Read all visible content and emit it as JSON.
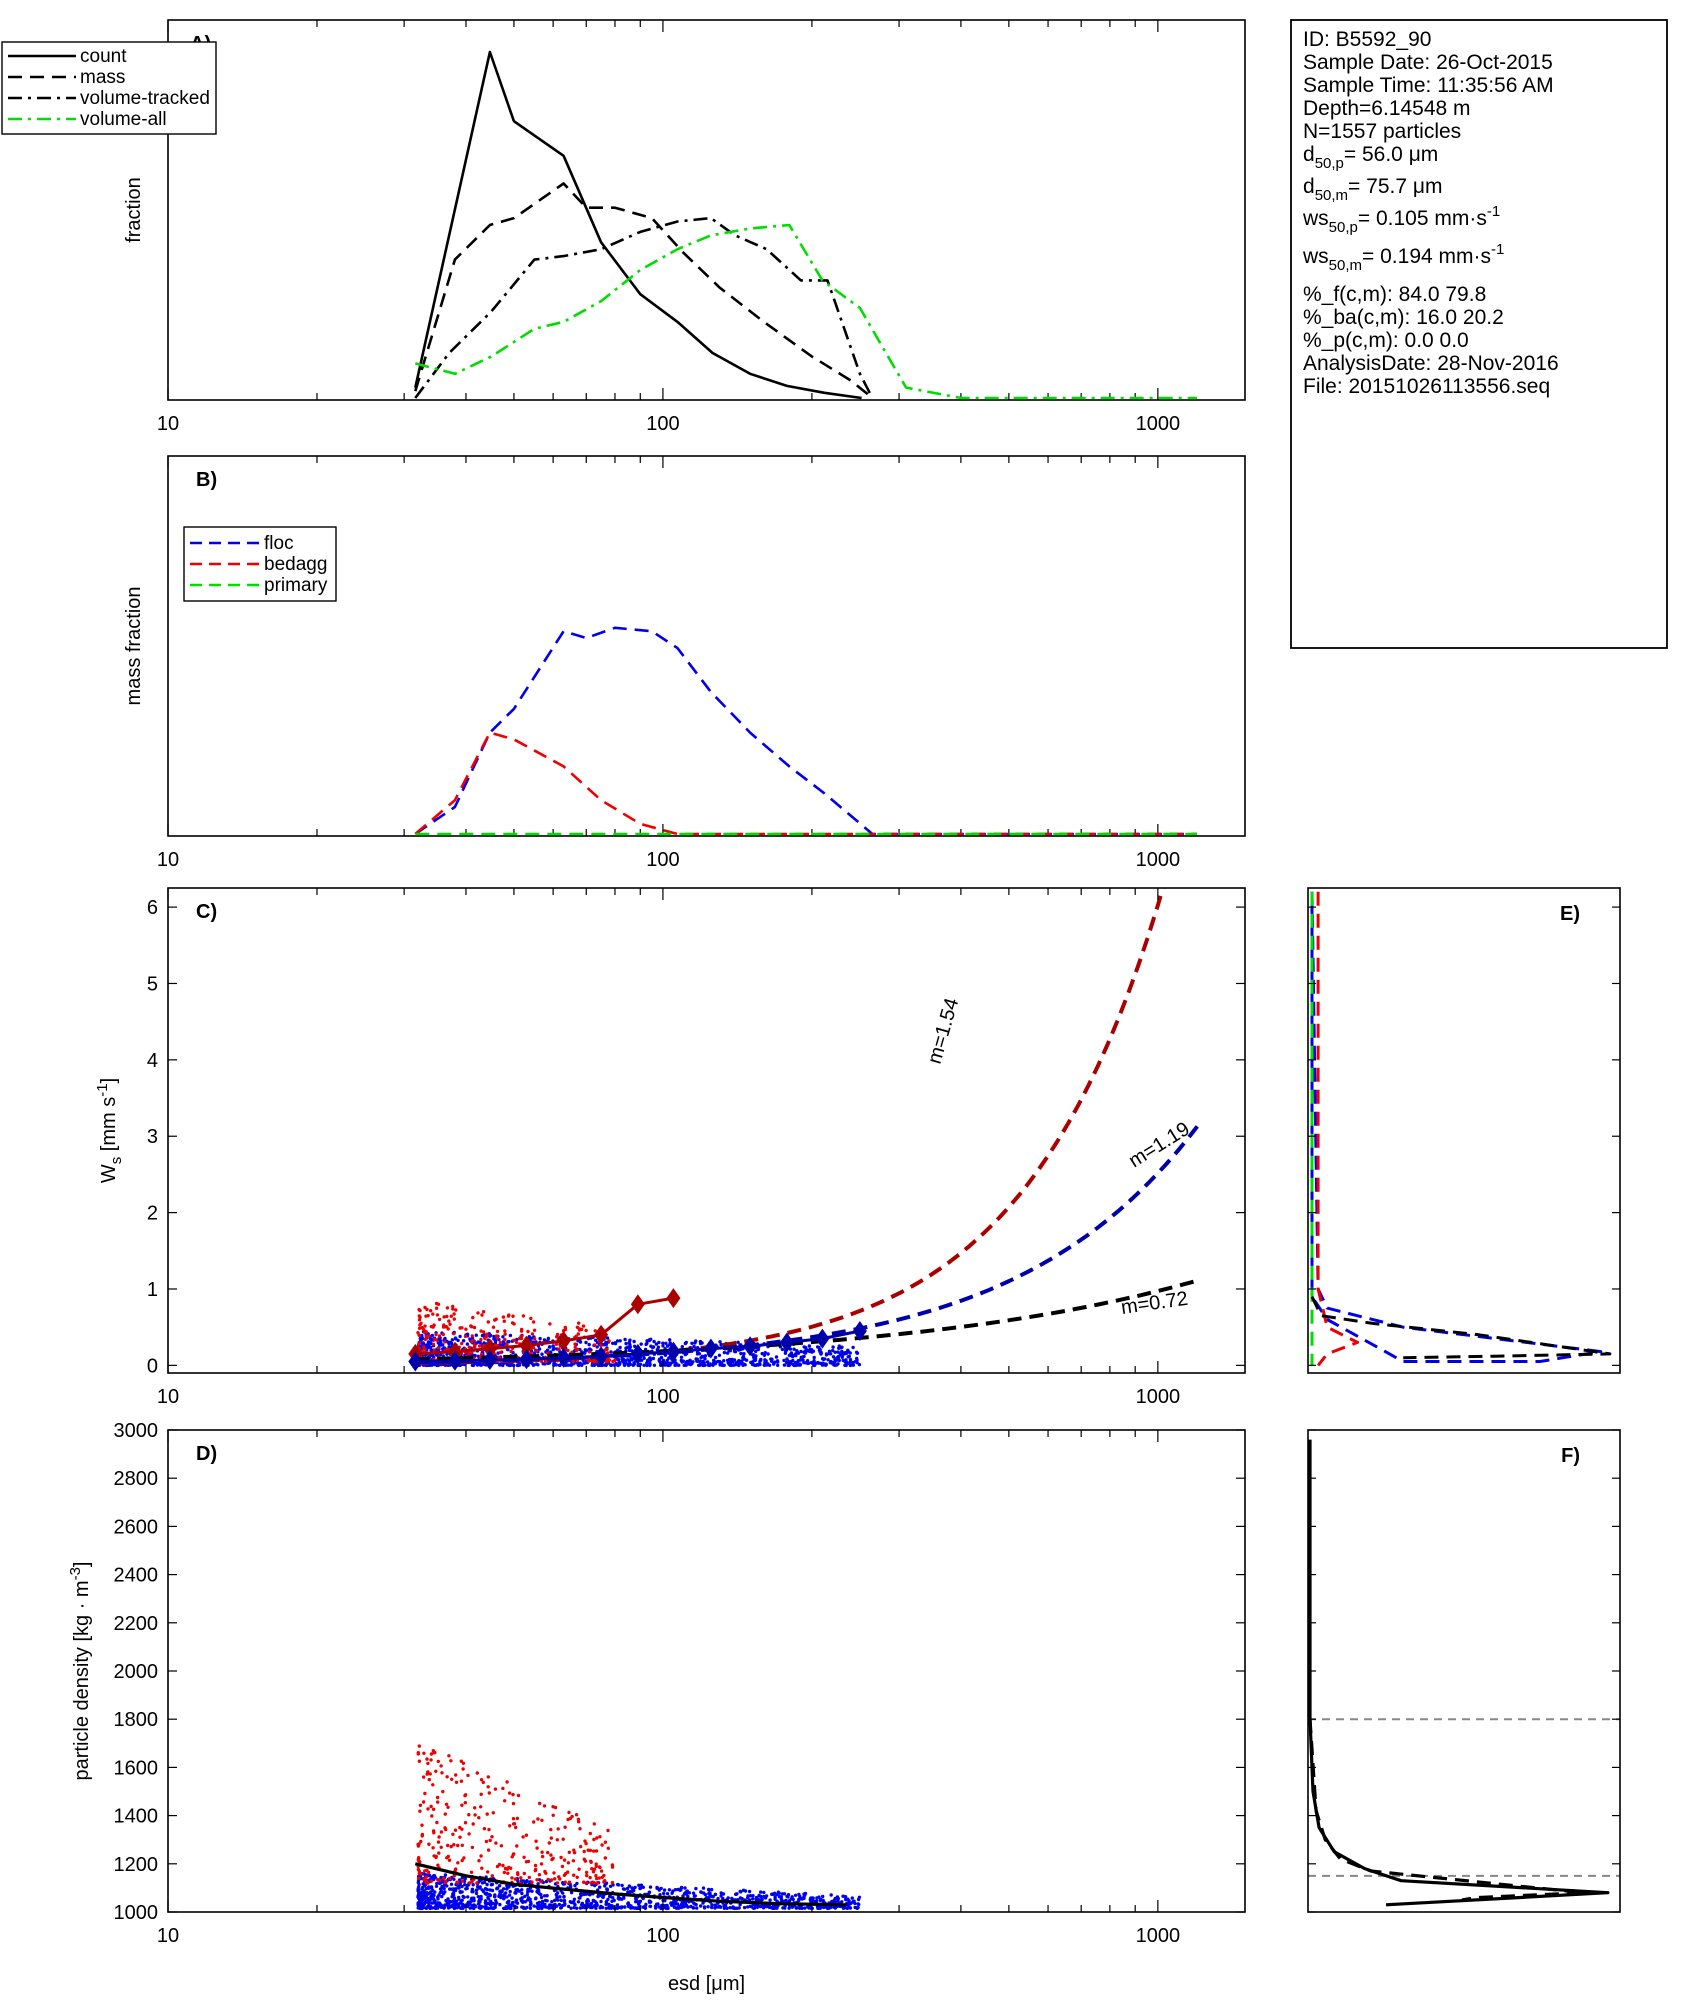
{
  "info_box": {
    "lines": [
      {
        "t": "ID: B5592_90"
      },
      {
        "t": "Sample Date: 26-Oct-2015"
      },
      {
        "t": "Sample Time: 11:35:56 AM"
      },
      {
        "t": "Depth=6.14548 m"
      },
      {
        "t": "N=1557 particles"
      },
      {
        "t": "d",
        "sub": "50,p",
        "rest": "=  56.0 μm"
      },
      {
        "t": "d",
        "sub": "50,m",
        "rest": "=  75.7 μm"
      },
      {
        "t": "ws",
        "sub": "50,p",
        "rest": "= 0.105 mm·s",
        "sup": "-1"
      },
      {
        "t": "ws",
        "sub": "50,m",
        "rest": "= 0.194 mm·s",
        "sup": "-1"
      },
      {
        "t": "%_f(c,m): 84.0 79.8"
      },
      {
        "t": "%_ba(c,m): 16.0 20.2"
      },
      {
        "t": "%_p(c,m): 0.0 0.0"
      },
      {
        "t": "AnalysisDate: 28-Nov-2016"
      },
      {
        "t": "File: 20151026113556.seq"
      }
    ]
  },
  "colors": {
    "floc": "#0000ee",
    "bedagg": "#ee0000",
    "primary": "#00dd00",
    "volume_all": "#00dd00",
    "fit_red": "#aa0000",
    "fit_blue": "#0000aa",
    "black": "#000000",
    "ref_line": "#888888"
  },
  "chart_data": [
    {
      "id": "A",
      "type": "line",
      "panel_label": "A)",
      "ylabel": "fraction",
      "x_scale": "log",
      "xlim": [
        10,
        1500
      ],
      "ylim": [
        0,
        1
      ],
      "x_ticks": [
        10,
        100,
        1000
      ],
      "x_ticklabels": [
        "10",
        "100",
        "1000"
      ],
      "legend": {
        "position": "top-left",
        "entries": [
          "count",
          "mass",
          "volume-tracked",
          "volume-all"
        ]
      },
      "series": [
        {
          "name": "count",
          "style": "solid",
          "color": "#000000",
          "x": [
            31.6,
            44.7,
            50,
            63,
            75,
            90,
            107,
            126,
            150,
            178,
            212,
            252
          ],
          "y": [
            0.03,
            1.0,
            0.8,
            0.7,
            0.45,
            0.3,
            0.22,
            0.13,
            0.07,
            0.035,
            0.015,
            0.0
          ]
        },
        {
          "name": "mass",
          "style": "dash",
          "color": "#000000",
          "x": [
            31.6,
            38,
            44.7,
            50,
            63,
            70,
            80,
            95,
            110,
            130,
            160,
            200,
            240,
            265
          ],
          "y": [
            0.02,
            0.4,
            0.5,
            0.52,
            0.62,
            0.55,
            0.55,
            0.52,
            0.42,
            0.32,
            0.22,
            0.12,
            0.05,
            0.0
          ]
        },
        {
          "name": "volume-tracked",
          "style": "dashdot",
          "color": "#000000",
          "x": [
            31.6,
            37,
            45,
            55,
            63,
            75,
            90,
            107,
            125,
            140,
            162,
            190,
            215,
            250,
            265
          ],
          "y": [
            0.0,
            0.13,
            0.25,
            0.4,
            0.41,
            0.43,
            0.48,
            0.51,
            0.52,
            0.47,
            0.43,
            0.34,
            0.34,
            0.07,
            0.0
          ]
        },
        {
          "name": "volume-all",
          "style": "dashdot",
          "color": "#00dd00",
          "x": [
            31.6,
            38,
            45,
            55,
            63,
            75,
            90,
            107,
            125,
            150,
            180,
            210,
            250,
            310,
            400,
            600,
            900,
            1200
          ],
          "y": [
            0.1,
            0.07,
            0.12,
            0.2,
            0.22,
            0.28,
            0.37,
            0.43,
            0.47,
            0.49,
            0.5,
            0.34,
            0.26,
            0.03,
            0.0,
            0.0,
            0.0,
            0.0
          ]
        }
      ]
    },
    {
      "id": "B",
      "type": "line",
      "panel_label": "B)",
      "ylabel": "mass fraction",
      "x_scale": "log",
      "xlim": [
        10,
        1500
      ],
      "ylim": [
        0,
        1
      ],
      "x_ticks": [
        10,
        100,
        1000
      ],
      "x_ticklabels": [
        "10",
        "100",
        "1000"
      ],
      "legend": {
        "position": "top-left",
        "entries": [
          "floc",
          "bedagg",
          "primary"
        ]
      },
      "series": [
        {
          "name": "floc",
          "style": "dash",
          "color": "#0000ee",
          "x": [
            31.6,
            38,
            44.7,
            50,
            63,
            70,
            80,
            95,
            107,
            125,
            150,
            180,
            212,
            265,
            300,
            600,
            1200
          ],
          "y": [
            0.0,
            0.08,
            0.3,
            0.37,
            0.6,
            0.58,
            0.61,
            0.6,
            0.55,
            0.42,
            0.3,
            0.2,
            0.12,
            0.0,
            0.0,
            0.0,
            0.0
          ]
        },
        {
          "name": "bedagg",
          "style": "dash",
          "color": "#ee0000",
          "x": [
            31.6,
            38,
            44.7,
            50,
            63,
            75,
            90,
            107,
            125,
            300,
            1200
          ],
          "y": [
            0.0,
            0.1,
            0.3,
            0.28,
            0.2,
            0.1,
            0.03,
            0.0,
            0.0,
            0.0,
            0.0
          ]
        },
        {
          "name": "primary",
          "style": "dash",
          "color": "#00dd00",
          "x": [
            31.6,
            1200
          ],
          "y": [
            0.0,
            0.0
          ]
        }
      ]
    },
    {
      "id": "C",
      "type": "scatter",
      "panel_label": "C)",
      "x_scale": "log",
      "xlim": [
        10,
        1500
      ],
      "ylim": [
        -0.1,
        6.25
      ],
      "x_ticks": [
        10,
        100,
        1000
      ],
      "x_ticklabels": [
        "10",
        "100",
        "1000"
      ],
      "y_ticks": [
        0,
        1,
        2,
        3,
        4,
        5,
        6
      ],
      "y_ticklabels": [
        "0",
        "1",
        "2",
        "3",
        "4",
        "5",
        "6"
      ],
      "scatter_groups": [
        {
          "color": "#ee0000",
          "count": 320,
          "x_range": [
            32,
            80
          ],
          "y_range": [
            0.05,
            0.85
          ]
        },
        {
          "color": "#0000ee",
          "count": 1237,
          "x_range": [
            32,
            250
          ],
          "y_range": [
            0.0,
            0.45
          ]
        }
      ],
      "fits": [
        {
          "label": "m=1.54",
          "color": "#aa0000",
          "style": "dash",
          "a": 0.0001445,
          "b": 1.54
        },
        {
          "label": "m=1.19",
          "color": "#0000aa",
          "style": "dash",
          "a": 0.000677,
          "b": 1.19
        },
        {
          "label": "m=0.72",
          "color": "#000000",
          "style": "dash",
          "a": 0.00673,
          "b": 0.72
        }
      ],
      "binned_medians": [
        {
          "color": "#aa0000",
          "x": [
            31.6,
            38,
            44.7,
            53,
            63,
            75,
            89,
            105
          ],
          "y": [
            0.15,
            0.18,
            0.22,
            0.26,
            0.32,
            0.4,
            0.8,
            0.88
          ]
        },
        {
          "color": "#0000aa",
          "x": [
            31.6,
            38,
            44.7,
            53,
            63,
            75,
            89,
            105,
            125,
            150,
            178,
            210,
            250
          ],
          "y": [
            0.05,
            0.06,
            0.07,
            0.08,
            0.1,
            0.12,
            0.15,
            0.18,
            0.22,
            0.25,
            0.3,
            0.35,
            0.45
          ]
        }
      ]
    },
    {
      "id": "D",
      "type": "scatter",
      "panel_label": "D)",
      "xlabel": "esd [μm]",
      "x_scale": "log",
      "xlim": [
        10,
        1500
      ],
      "ylim": [
        1000,
        3000
      ],
      "x_ticks": [
        10,
        100,
        1000
      ],
      "x_ticklabels": [
        "10",
        "100",
        "1000"
      ],
      "y_ticks": [
        1000,
        1200,
        1400,
        1600,
        1800,
        2000,
        2200,
        2400,
        2600,
        2800,
        3000
      ],
      "y_ticklabels": [
        "1000",
        "1200",
        "1400",
        "1600",
        "1800",
        "2000",
        "2200",
        "2400",
        "2600",
        "2800",
        "3000"
      ],
      "scatter_groups": [
        {
          "color": "#ee0000",
          "count": 320,
          "x_range": [
            32,
            80
          ],
          "y_range": [
            1120,
            1720
          ]
        },
        {
          "color": "#0000ee",
          "count": 1237,
          "x_range": [
            32,
            250
          ],
          "y_range": [
            1015,
            1160
          ]
        }
      ],
      "fit_line": {
        "color": "#000000",
        "x": [
          31.6,
          40,
          50,
          63,
          80,
          100,
          130,
          170,
          235
        ],
        "y": [
          1200,
          1150,
          1115,
          1095,
          1075,
          1060,
          1045,
          1035,
          1030
        ]
      }
    },
    {
      "id": "E",
      "type": "line",
      "panel_label": "E)",
      "ylim": [
        -0.1,
        6.25
      ],
      "series": [
        {
          "name": "floc",
          "color": "#0000ee",
          "style": "dash",
          "x": [
            0.0,
            0.02,
            0.05,
            0.3,
            0.95,
            0.75,
            0.3,
            0.05,
            0.0,
            0.0
          ],
          "y": [
            6.2,
            1.0,
            0.75,
            0.5,
            0.18,
            0.05,
            0.05,
            0.6,
            0.9,
            6.2
          ]
        },
        {
          "name": "bedagg",
          "color": "#ee0000",
          "style": "dash",
          "x": [
            0.02,
            0.02,
            0.05,
            0.15,
            0.05,
            0.02
          ],
          "y": [
            6.2,
            1.0,
            0.5,
            0.3,
            0.15,
            0.0
          ]
        },
        {
          "name": "primary",
          "color": "#00dd00",
          "style": "dash",
          "x": [
            0.0,
            0.0
          ],
          "y": [
            6.2,
            0.0
          ]
        },
        {
          "name": "total",
          "color": "#000000",
          "style": "dash",
          "x": [
            0.0,
            0.03,
            0.2,
            0.55,
            0.98,
            0.6,
            0.3
          ],
          "y": [
            0.9,
            0.65,
            0.55,
            0.4,
            0.15,
            0.12,
            0.1
          ]
        }
      ]
    },
    {
      "id": "F",
      "type": "line",
      "panel_label": "F)",
      "ylim": [
        1000,
        3000
      ],
      "ref_lines": [
        1800,
        1150
      ],
      "series": [
        {
          "name": "count",
          "color": "#000000",
          "style": "solid",
          "x": [
            0.0,
            0.0,
            0.01,
            0.03,
            0.08,
            0.18,
            0.3,
            0.98,
            0.25
          ],
          "y": [
            2960,
            1800,
            1500,
            1350,
            1250,
            1180,
            1130,
            1080,
            1030
          ]
        },
        {
          "name": "mass",
          "color": "#000000",
          "style": "dash",
          "x": [
            0.0,
            0.02,
            0.05,
            0.1,
            0.2,
            0.9,
            0.55,
            0.5
          ],
          "y": [
            1800,
            1420,
            1300,
            1220,
            1170,
            1080,
            1060,
            1050
          ]
        }
      ]
    }
  ]
}
